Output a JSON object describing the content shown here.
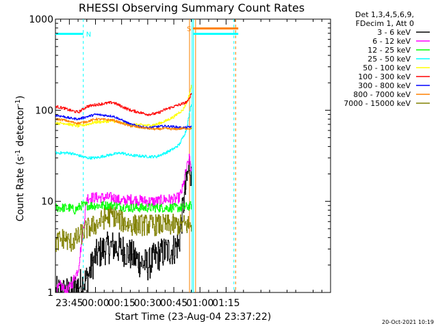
{
  "chart_data": {
    "type": "line",
    "title": "RHESSI Observing Summary Count Rates",
    "xlabel": "Start Time (23-Aug-04 23:37:22)",
    "ylabel_main": "Count Rate (s",
    "ylabel_sup1": "-1",
    "ylabel_mid": " detector",
    "ylabel_sup2": "-1",
    "ylabel_end": ")",
    "y_scale": "log",
    "ylim": [
      1,
      1000
    ],
    "xlim_minutes": [
      -23,
      135
    ],
    "x_ticks": [
      {
        "label": "23:45",
        "t": -15
      },
      {
        "label": "00:00",
        "t": 0
      },
      {
        "label": "00:15",
        "t": 15
      },
      {
        "label": "00:30",
        "t": 30
      },
      {
        "label": "00:45",
        "t": 45
      },
      {
        "label": "01:00",
        "t": 60
      },
      {
        "label": "01:15",
        "t": 75
      }
    ],
    "y_ticks": [
      {
        "label": "1",
        "v": 1
      },
      {
        "label": "10",
        "v": 10
      },
      {
        "label": "100",
        "v": 100
      },
      {
        "label": "1000",
        "v": 1000
      }
    ],
    "legend_header": [
      "Det 1,3,4,5,6,9,",
      "FDecim 1, Att 0"
    ],
    "legend_position": "right, outside plot",
    "series": [
      {
        "name": "3 - 6 keV",
        "color": "#000000",
        "points": [
          [
            -23,
            1.0
          ],
          [
            -18,
            1.0
          ],
          [
            -14,
            1.0
          ],
          [
            -10,
            1.2
          ],
          [
            -7,
            1.3
          ],
          [
            -5,
            1.4
          ],
          [
            0,
            2.5
          ],
          [
            5,
            3.0
          ],
          [
            10,
            3.2
          ],
          [
            15,
            3.0
          ],
          [
            20,
            2.6
          ],
          [
            25,
            2.2
          ],
          [
            30,
            2.0
          ],
          [
            35,
            2.5
          ],
          [
            40,
            2.8
          ],
          [
            45,
            3.0
          ],
          [
            48,
            3.5
          ],
          [
            50,
            8.0
          ],
          [
            52,
            15.0
          ],
          [
            54,
            26.0
          ],
          [
            55,
            18.0
          ]
        ]
      },
      {
        "name": "6 - 12 keV",
        "color": "#ff00ff",
        "points": [
          [
            -23,
            1.0
          ],
          [
            -20,
            1.2
          ],
          [
            -17,
            1.0
          ],
          [
            -14,
            1.2
          ],
          [
            -10,
            1.8
          ],
          [
            -5,
            11.0
          ],
          [
            0,
            11.0
          ],
          [
            10,
            11.0
          ],
          [
            15,
            10.0
          ],
          [
            20,
            10.5
          ],
          [
            30,
            10.0
          ],
          [
            35,
            10.0
          ],
          [
            40,
            10.5
          ],
          [
            45,
            10.5
          ],
          [
            48,
            11.0
          ],
          [
            50,
            14.0
          ],
          [
            52,
            22.0
          ],
          [
            54,
            30.0
          ],
          [
            55,
            22.0
          ]
        ]
      },
      {
        "name": "12 - 25 keV",
        "color": "#00ff00",
        "points": [
          [
            -23,
            8.5
          ],
          [
            -18,
            8.5
          ],
          [
            -15,
            8.5
          ],
          [
            -12,
            8.0
          ],
          [
            -8,
            9.0
          ],
          [
            -5,
            9.0
          ],
          [
            0,
            9.0
          ],
          [
            10,
            9.0
          ],
          [
            20,
            8.5
          ],
          [
            30,
            8.5
          ],
          [
            40,
            8.5
          ],
          [
            50,
            8.5
          ],
          [
            55,
            9.0
          ]
        ]
      },
      {
        "name": "25 - 50 keV",
        "color": "#00ffff",
        "points": [
          [
            -23,
            34
          ],
          [
            -18,
            34
          ],
          [
            -15,
            34
          ],
          [
            -10,
            32
          ],
          [
            -5,
            30
          ],
          [
            0,
            30
          ],
          [
            10,
            33
          ],
          [
            15,
            34
          ],
          [
            20,
            32
          ],
          [
            30,
            31
          ],
          [
            35,
            31
          ],
          [
            40,
            34
          ],
          [
            45,
            38
          ],
          [
            48,
            42
          ],
          [
            50,
            50
          ],
          [
            52,
            60
          ],
          [
            55,
            120
          ]
        ]
      },
      {
        "name": "50 - 100 keV",
        "color": "#ffff00",
        "points": [
          [
            -23,
            72
          ],
          [
            -18,
            72
          ],
          [
            -15,
            70
          ],
          [
            -10,
            67
          ],
          [
            -5,
            70
          ],
          [
            0,
            74
          ],
          [
            10,
            76
          ],
          [
            15,
            72
          ],
          [
            20,
            70
          ],
          [
            30,
            68
          ],
          [
            35,
            70
          ],
          [
            40,
            76
          ],
          [
            45,
            85
          ],
          [
            48,
            95
          ],
          [
            50,
            100
          ],
          [
            53,
            130
          ],
          [
            55,
            185
          ]
        ]
      },
      {
        "name": "100 - 300 keV",
        "color": "#ff0000",
        "points": [
          [
            -23,
            110
          ],
          [
            -18,
            105
          ],
          [
            -15,
            100
          ],
          [
            -10,
            95
          ],
          [
            -5,
            110
          ],
          [
            0,
            115
          ],
          [
            10,
            122
          ],
          [
            15,
            110
          ],
          [
            20,
            100
          ],
          [
            30,
            90
          ],
          [
            35,
            92
          ],
          [
            40,
            102
          ],
          [
            45,
            110
          ],
          [
            48,
            115
          ],
          [
            50,
            118
          ],
          [
            53,
            125
          ],
          [
            55,
            155
          ]
        ]
      },
      {
        "name": "300 - 800 keV",
        "color": "#0000ff",
        "points": [
          [
            -23,
            88
          ],
          [
            -18,
            85
          ],
          [
            -15,
            82
          ],
          [
            -10,
            80
          ],
          [
            -5,
            85
          ],
          [
            0,
            90
          ],
          [
            10,
            86
          ],
          [
            15,
            78
          ],
          [
            20,
            70
          ],
          [
            30,
            64
          ],
          [
            35,
            66
          ],
          [
            40,
            67
          ],
          [
            45,
            66
          ],
          [
            50,
            64
          ],
          [
            55,
            66
          ]
        ]
      },
      {
        "name": "800 - 7000 keV",
        "color": "#ff8000",
        "points": [
          [
            -23,
            80
          ],
          [
            -18,
            78
          ],
          [
            -15,
            75
          ],
          [
            -10,
            72
          ],
          [
            -5,
            75
          ],
          [
            0,
            80
          ],
          [
            10,
            78
          ],
          [
            15,
            72
          ],
          [
            20,
            67
          ],
          [
            30,
            63
          ],
          [
            35,
            62
          ],
          [
            40,
            63
          ],
          [
            45,
            62
          ],
          [
            50,
            63
          ],
          [
            55,
            63
          ]
        ]
      },
      {
        "name": "7000 - 15000 keV",
        "color": "#808000",
        "points": [
          [
            -23,
            3.5
          ],
          [
            -18,
            4.0
          ],
          [
            -15,
            3.5
          ],
          [
            -10,
            4.0
          ],
          [
            -5,
            5.0
          ],
          [
            0,
            5.5
          ],
          [
            5,
            6.5
          ],
          [
            10,
            7.0
          ],
          [
            15,
            6.0
          ],
          [
            20,
            5.5
          ],
          [
            30,
            5.5
          ],
          [
            40,
            5.5
          ],
          [
            45,
            5.5
          ],
          [
            50,
            5.5
          ],
          [
            55,
            5.5
          ]
        ]
      }
    ],
    "bars": [
      {
        "label": "N",
        "color": "#00ffff",
        "start": -23,
        "end": -7,
        "level": 690
      },
      {
        "label": "S",
        "color": "#ff8000",
        "start": 56,
        "end": 82,
        "level": 790
      },
      {
        "label": "",
        "color": "#00ffff",
        "start": 56,
        "end": 82,
        "level": 690
      }
    ],
    "vlines": [
      {
        "t": -7,
        "color": "#00ffff",
        "dashed": true
      },
      {
        "t": 54,
        "color": "#ff8000",
        "dashed": false
      },
      {
        "t": 55.5,
        "color": "#00ffff",
        "dashed": false
      },
      {
        "t": 56.3,
        "color": "#00ffff",
        "dashed": false
      },
      {
        "t": 57.5,
        "color": "#ff8000",
        "dashed": false
      },
      {
        "t": 79.5,
        "color": "#00ffff",
        "dashed": true
      },
      {
        "t": 80.5,
        "color": "#ff8000",
        "dashed": true
      }
    ],
    "footer": "20-Oct-2021 10:19"
  }
}
